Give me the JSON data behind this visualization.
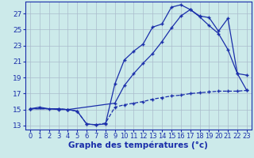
{
  "xlabel": "Graphe des températures (°c)",
  "bg_color": "#cceaea",
  "grid_color": "#aabccc",
  "line_color": "#1a2eaa",
  "xlim": [
    -0.5,
    23.5
  ],
  "ylim": [
    12.5,
    28.5
  ],
  "yticks": [
    13,
    15,
    17,
    19,
    21,
    23,
    25,
    27
  ],
  "xticks": [
    0,
    1,
    2,
    3,
    4,
    5,
    6,
    7,
    8,
    9,
    10,
    11,
    12,
    13,
    14,
    15,
    16,
    17,
    18,
    19,
    20,
    21,
    22,
    23
  ],
  "line1_x": [
    0,
    1,
    2,
    3,
    4,
    5,
    6,
    7,
    8,
    9,
    10,
    11,
    12,
    13,
    14,
    15,
    16,
    17,
    18,
    19,
    20,
    21,
    22,
    23
  ],
  "line1_y": [
    15.1,
    15.3,
    15.1,
    15.0,
    15.0,
    14.8,
    13.2,
    13.1,
    13.2,
    18.2,
    21.2,
    22.3,
    23.2,
    25.3,
    25.7,
    27.8,
    28.1,
    27.5,
    26.7,
    26.5,
    24.8,
    26.4,
    19.5,
    19.3
  ],
  "line2_x": [
    0,
    3,
    4,
    9,
    10,
    11,
    12,
    13,
    14,
    15,
    16,
    17,
    18,
    19,
    20,
    21,
    22,
    23
  ],
  "line2_y": [
    15.1,
    15.1,
    15.0,
    15.8,
    18.0,
    19.5,
    20.8,
    22.0,
    23.5,
    25.2,
    26.7,
    27.5,
    26.6,
    25.5,
    24.5,
    22.5,
    19.5,
    17.4
  ],
  "line3_x": [
    0,
    3,
    4,
    5,
    6,
    7,
    8,
    9,
    10,
    11,
    12,
    13,
    14,
    15,
    16,
    17,
    18,
    19,
    20,
    21,
    22,
    23
  ],
  "line3_y": [
    15.1,
    15.1,
    15.0,
    14.8,
    13.2,
    13.1,
    13.3,
    15.3,
    15.6,
    15.8,
    16.0,
    16.3,
    16.5,
    16.7,
    16.8,
    17.0,
    17.1,
    17.2,
    17.3,
    17.3,
    17.3,
    17.4
  ],
  "xlabel_fontsize": 7.5,
  "tick_fontsize": 6
}
